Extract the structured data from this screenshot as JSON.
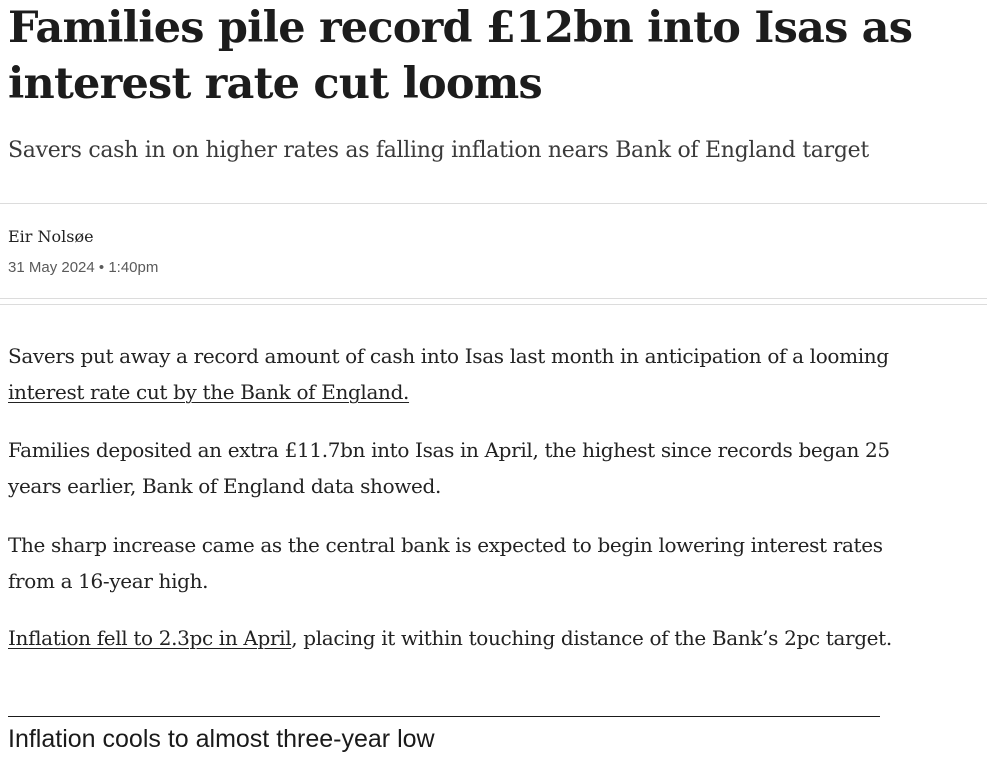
{
  "article": {
    "headline": "Families pile record £12bn into Isas as interest rate cut looms",
    "standfirst": "Savers cash in on higher rates as falling inflation nears Bank of England target",
    "author": "Eir Nolsøe",
    "published": "31 May 2024 • 1:40pm"
  },
  "paragraphs": [
    {
      "before": "Savers put away a record amount of cash into Isas last month in anticipation of a looming ",
      "link": "interest rate cut by the Bank of England.",
      "after": ""
    },
    {
      "before": "Families deposited an extra £11.7bn into Isas in April, the highest since records began 25 years earlier, Bank of England data showed.",
      "link": "",
      "after": ""
    },
    {
      "before": "The sharp increase came as the central bank is expected to begin lowering interest rates from a 16-year high.",
      "link": "",
      "after": ""
    },
    {
      "before": "",
      "link": "Inflation fell to 2.3pc in April",
      "after": ", placing it within touching distance of the Bank’s 2pc target."
    }
  ],
  "embedded_chart": {
    "title": "Inflation cools to almost three-year low"
  }
}
